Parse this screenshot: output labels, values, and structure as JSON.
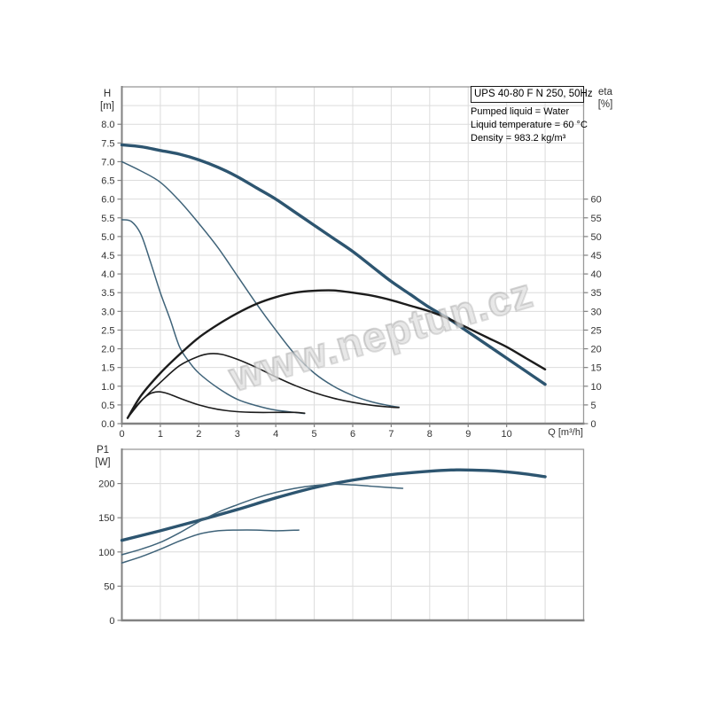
{
  "title_box": "UPS 40-80 F N 250, 50Hz",
  "info_lines": {
    "pumped_liquid": "Pumped liquid = Water",
    "temperature": "Liquid temperature = 60 °C",
    "density": "Density = 983.2 kg/m³"
  },
  "watermark": "www.neptun.cz",
  "colors": {
    "curve_main": "#2d5570",
    "curve_thin": "#3f6379",
    "curve_black": "#1c1c1c",
    "grid": "#dcdcdc",
    "axis": "#9a9a9a",
    "axis_dark": "#828282",
    "tick_text": "#333333"
  },
  "chart_data": [
    {
      "type": "line",
      "id": "hq-eta-chart",
      "xlabel": "Q [m³/h]",
      "ylabel_left_lines": [
        "H",
        "[m]"
      ],
      "ylabel_right_lines": [
        "eta",
        "[%]"
      ],
      "xlim": [
        0,
        12
      ],
      "ylim_left": [
        0,
        9
      ],
      "ylim_right": [
        0,
        90
      ],
      "x_grid_step": 1,
      "y_grid_step": 0.5,
      "x_tick_labels": [
        0,
        1,
        2,
        3,
        4,
        5,
        6,
        7,
        8,
        9,
        10
      ],
      "y_left_ticks": [
        0,
        0.5,
        1,
        1.5,
        2,
        2.5,
        3,
        3.5,
        4,
        4.5,
        5,
        5.5,
        6,
        6.5,
        7,
        7.5,
        8
      ],
      "y_right_ticks": [
        0,
        5,
        10,
        15,
        20,
        25,
        30,
        35,
        40,
        45,
        50,
        55,
        60
      ],
      "series": [
        {
          "name": "H-Q speed 3",
          "axis": "left",
          "color": "curve_main",
          "style": "thick",
          "points": [
            [
              0,
              7.45
            ],
            [
              0.5,
              7.4
            ],
            [
              1,
              7.3
            ],
            [
              1.5,
              7.2
            ],
            [
              2,
              7.05
            ],
            [
              2.5,
              6.85
            ],
            [
              3,
              6.6
            ],
            [
              3.5,
              6.3
            ],
            [
              4,
              6.0
            ],
            [
              4.5,
              5.65
            ],
            [
              5,
              5.3
            ],
            [
              5.5,
              4.95
            ],
            [
              6,
              4.6
            ],
            [
              6.5,
              4.2
            ],
            [
              7,
              3.8
            ],
            [
              7.5,
              3.45
            ],
            [
              8,
              3.1
            ],
            [
              8.5,
              2.8
            ],
            [
              9,
              2.45
            ],
            [
              9.5,
              2.1
            ],
            [
              10,
              1.75
            ],
            [
              10.5,
              1.4
            ],
            [
              11,
              1.05
            ]
          ]
        },
        {
          "name": "H-Q speed 2",
          "axis": "left",
          "color": "curve_thin",
          "style": "thin",
          "points": [
            [
              0,
              7.0
            ],
            [
              0.5,
              6.75
            ],
            [
              1,
              6.45
            ],
            [
              1.5,
              5.95
            ],
            [
              2,
              5.35
            ],
            [
              2.5,
              4.7
            ],
            [
              3,
              3.95
            ],
            [
              3.5,
              3.2
            ],
            [
              4,
              2.5
            ],
            [
              4.5,
              1.85
            ],
            [
              5,
              1.35
            ],
            [
              5.5,
              1.0
            ],
            [
              6,
              0.75
            ],
            [
              6.5,
              0.58
            ],
            [
              7,
              0.47
            ],
            [
              7.2,
              0.44
            ]
          ]
        },
        {
          "name": "H-Q speed 1",
          "axis": "left",
          "color": "curve_thin",
          "style": "thin",
          "points": [
            [
              0,
              5.45
            ],
            [
              0.25,
              5.4
            ],
            [
              0.5,
              5.05
            ],
            [
              0.75,
              4.3
            ],
            [
              1,
              3.5
            ],
            [
              1.25,
              2.8
            ],
            [
              1.5,
              2.05
            ],
            [
              1.75,
              1.65
            ],
            [
              2,
              1.35
            ],
            [
              2.5,
              0.95
            ],
            [
              3,
              0.65
            ],
            [
              3.5,
              0.48
            ],
            [
              4,
              0.36
            ],
            [
              4.5,
              0.3
            ],
            [
              4.75,
              0.27
            ]
          ]
        },
        {
          "name": "eta speed 3",
          "axis": "right",
          "color": "curve_black",
          "style": "black_main",
          "points": [
            [
              0.15,
              1.5
            ],
            [
              0.5,
              7.5
            ],
            [
              1,
              13.5
            ],
            [
              1.5,
              18.5
            ],
            [
              2,
              23
            ],
            [
              2.5,
              26.5
            ],
            [
              3,
              29.5
            ],
            [
              3.5,
              32
            ],
            [
              4,
              33.8
            ],
            [
              4.5,
              35
            ],
            [
              5,
              35.5
            ],
            [
              5.5,
              35.6
            ],
            [
              6,
              35
            ],
            [
              6.5,
              34.2
            ],
            [
              7,
              33
            ],
            [
              7.5,
              31.5
            ],
            [
              8,
              30
            ],
            [
              8.5,
              28
            ],
            [
              9,
              25.5
            ],
            [
              9.5,
              23
            ],
            [
              10,
              20.5
            ],
            [
              10.5,
              17.5
            ],
            [
              11,
              14.5
            ]
          ]
        },
        {
          "name": "eta speed 2",
          "axis": "right",
          "color": "curve_black",
          "style": "black_thin",
          "points": [
            [
              0.15,
              1.5
            ],
            [
              0.5,
              6
            ],
            [
              1,
              11
            ],
            [
              1.5,
              15.5
            ],
            [
              2,
              18
            ],
            [
              2.3,
              18.7
            ],
            [
              2.6,
              18.5
            ],
            [
              3,
              17.2
            ],
            [
              3.5,
              15
            ],
            [
              4,
              12.5
            ],
            [
              4.5,
              10.2
            ],
            [
              5,
              8.3
            ],
            [
              5.5,
              6.8
            ],
            [
              6,
              5.7
            ],
            [
              6.5,
              4.9
            ],
            [
              7,
              4.4
            ],
            [
              7.2,
              4.3
            ]
          ]
        },
        {
          "name": "eta speed 1",
          "axis": "right",
          "color": "curve_black",
          "style": "black_thin",
          "points": [
            [
              0.15,
              1.5
            ],
            [
              0.4,
              5
            ],
            [
              0.7,
              7.8
            ],
            [
              0.95,
              8.5
            ],
            [
              1.2,
              8
            ],
            [
              1.5,
              6.8
            ],
            [
              2,
              5
            ],
            [
              2.5,
              3.8
            ],
            [
              3,
              3.2
            ],
            [
              3.5,
              3.0
            ],
            [
              4,
              3.0
            ],
            [
              4.5,
              3.0
            ],
            [
              4.75,
              2.8
            ]
          ]
        }
      ]
    },
    {
      "type": "line",
      "id": "p1-chart",
      "ylabel_lines": [
        "P1",
        "[W]"
      ],
      "xlim": [
        0,
        12
      ],
      "ylim": [
        0,
        250
      ],
      "x_grid_step": 1,
      "y_grid_step": 50,
      "y_ticks": [
        0,
        50,
        100,
        150,
        200
      ],
      "series": [
        {
          "name": "P1 speed 3",
          "color": "curve_main",
          "style": "thick",
          "points": [
            [
              0,
              117
            ],
            [
              1,
              131
            ],
            [
              2,
              146
            ],
            [
              3,
              162
            ],
            [
              4,
              179
            ],
            [
              5,
              194
            ],
            [
              6,
              205
            ],
            [
              7,
              213
            ],
            [
              8,
              218
            ],
            [
              8.7,
              220
            ],
            [
              9.5,
              219
            ],
            [
              10,
              217
            ],
            [
              10.5,
              214
            ],
            [
              11,
              210
            ]
          ]
        },
        {
          "name": "P1 speed 2",
          "color": "curve_thin",
          "style": "thin",
          "points": [
            [
              0,
              96
            ],
            [
              0.5,
              104
            ],
            [
              1,
              114
            ],
            [
              1.5,
              128
            ],
            [
              2,
              144
            ],
            [
              2.5,
              158
            ],
            [
              3,
              169
            ],
            [
              3.5,
              179
            ],
            [
              4,
              187
            ],
            [
              4.5,
              193
            ],
            [
              5,
              197
            ],
            [
              5.5,
              199
            ],
            [
              6,
              198
            ],
            [
              6.5,
              196
            ],
            [
              7,
              194
            ],
            [
              7.3,
              193
            ]
          ]
        },
        {
          "name": "P1 speed 1",
          "color": "curve_thin",
          "style": "thin",
          "points": [
            [
              0,
              84
            ],
            [
              0.5,
              93
            ],
            [
              1,
              104
            ],
            [
              1.5,
              116
            ],
            [
              2,
              126
            ],
            [
              2.5,
              131
            ],
            [
              3,
              132
            ],
            [
              3.5,
              132
            ],
            [
              4,
              131
            ],
            [
              4.6,
              132
            ]
          ]
        }
      ]
    }
  ]
}
